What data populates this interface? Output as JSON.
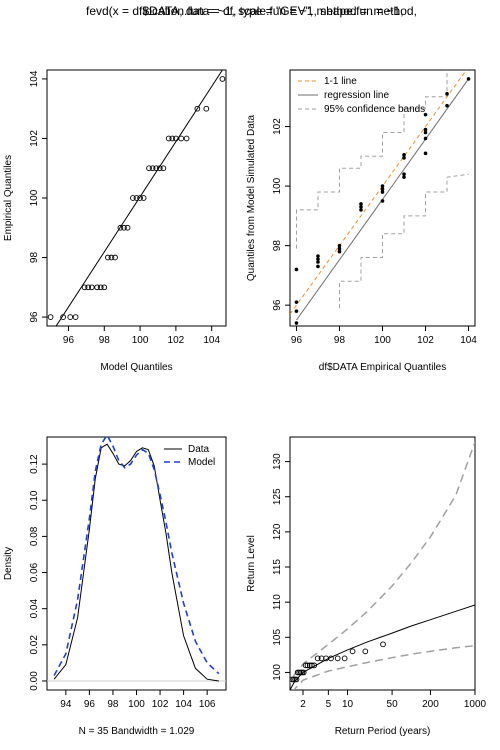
{
  "header": {
    "call_text_a": "fevd(x = df$DATA, data = df, type = \"GEV\", method = .method,",
    "call_text_b": "                 location.fun = ~1, scale.fun = ~1, shape.fun = ~1,"
  },
  "colors": {
    "line": "#000000",
    "orange": "#f28e2b",
    "gray": "#a0a0a0",
    "blue": "#1f3fd6"
  },
  "chart_data": [
    {
      "id": "qq-model",
      "type": "scatter",
      "xlabel": "Model Quantiles",
      "ylabel": "Empirical Quantiles",
      "xlim": [
        94.8,
        104.8
      ],
      "ylim": [
        95.7,
        104.3
      ],
      "x_ticks": [
        96,
        98,
        100,
        102,
        104
      ],
      "y_ticks": [
        96,
        98,
        100,
        102,
        104
      ],
      "points": [
        {
          "x": 95.0,
          "y": 96
        },
        {
          "x": 95.7,
          "y": 96
        },
        {
          "x": 96.1,
          "y": 96
        },
        {
          "x": 96.4,
          "y": 96
        },
        {
          "x": 96.9,
          "y": 97
        },
        {
          "x": 97.1,
          "y": 97
        },
        {
          "x": 97.3,
          "y": 97
        },
        {
          "x": 97.6,
          "y": 97
        },
        {
          "x": 97.8,
          "y": 97
        },
        {
          "x": 98.0,
          "y": 97
        },
        {
          "x": 98.2,
          "y": 98
        },
        {
          "x": 98.4,
          "y": 98
        },
        {
          "x": 98.6,
          "y": 98
        },
        {
          "x": 98.9,
          "y": 99
        },
        {
          "x": 99.1,
          "y": 99
        },
        {
          "x": 99.3,
          "y": 99
        },
        {
          "x": 99.6,
          "y": 100
        },
        {
          "x": 99.8,
          "y": 100
        },
        {
          "x": 100.0,
          "y": 100
        },
        {
          "x": 100.2,
          "y": 100
        },
        {
          "x": 100.5,
          "y": 101
        },
        {
          "x": 100.7,
          "y": 101
        },
        {
          "x": 100.9,
          "y": 101
        },
        {
          "x": 101.1,
          "y": 101
        },
        {
          "x": 101.3,
          "y": 101
        },
        {
          "x": 101.6,
          "y": 102
        },
        {
          "x": 101.8,
          "y": 102
        },
        {
          "x": 102.0,
          "y": 102
        },
        {
          "x": 102.3,
          "y": 102
        },
        {
          "x": 102.6,
          "y": 102
        },
        {
          "x": 103.2,
          "y": 103
        },
        {
          "x": 103.7,
          "y": 103
        },
        {
          "x": 104.6,
          "y": 104
        }
      ],
      "fit_line": [
        [
          95.2,
          95.6
        ],
        [
          104.6,
          104.3
        ]
      ]
    },
    {
      "id": "qq-simulated",
      "type": "scatter",
      "xlabel": "df$DATA Empirical Quantiles",
      "ylabel": "Quantiles from Model Simulated Data",
      "xlim": [
        95.7,
        104.3
      ],
      "ylim": [
        95.3,
        103.9
      ],
      "x_ticks": [
        96,
        98,
        100,
        102,
        104
      ],
      "y_ticks": [
        96,
        98,
        100,
        102
      ],
      "legend": {
        "position": "top-left",
        "entries": [
          "1-1 line",
          "regression line",
          "95% confidence bands"
        ]
      },
      "points": [
        {
          "x": 96,
          "y": 95.4
        },
        {
          "x": 96,
          "y": 95.8
        },
        {
          "x": 96,
          "y": 96.1
        },
        {
          "x": 96,
          "y": 97.2
        },
        {
          "x": 97,
          "y": 97.3
        },
        {
          "x": 97,
          "y": 97.45
        },
        {
          "x": 97,
          "y": 97.55
        },
        {
          "x": 97,
          "y": 97.65
        },
        {
          "x": 98,
          "y": 97.8
        },
        {
          "x": 98,
          "y": 97.9
        },
        {
          "x": 98,
          "y": 98.0
        },
        {
          "x": 99,
          "y": 99.2
        },
        {
          "x": 99,
          "y": 99.3
        },
        {
          "x": 99,
          "y": 99.4
        },
        {
          "x": 100,
          "y": 99.5
        },
        {
          "x": 100,
          "y": 99.8
        },
        {
          "x": 100,
          "y": 99.9
        },
        {
          "x": 100,
          "y": 100.0
        },
        {
          "x": 101,
          "y": 100.3
        },
        {
          "x": 101,
          "y": 100.4
        },
        {
          "x": 101,
          "y": 100.95
        },
        {
          "x": 101,
          "y": 101.05
        },
        {
          "x": 102,
          "y": 101.1
        },
        {
          "x": 102,
          "y": 101.6
        },
        {
          "x": 102,
          "y": 101.8
        },
        {
          "x": 102,
          "y": 101.9
        },
        {
          "x": 102,
          "y": 102.4
        },
        {
          "x": 103,
          "y": 102.7
        },
        {
          "x": 103,
          "y": 103.1
        },
        {
          "x": 104,
          "y": 103.6
        }
      ],
      "one_to_one": [
        [
          95.7,
          95.7
        ],
        [
          104.3,
          104.3
        ]
      ],
      "regression": [
        [
          96,
          95.5
        ],
        [
          104,
          103.6
        ]
      ],
      "band_upper": [
        [
          96,
          97.9
        ],
        [
          96,
          99.2
        ],
        [
          97,
          99.2
        ],
        [
          97,
          99.8
        ],
        [
          98,
          99.8
        ],
        [
          98,
          100.6
        ],
        [
          99,
          100.6
        ],
        [
          99,
          101.0
        ],
        [
          100,
          101.0
        ],
        [
          100,
          101.8
        ],
        [
          101,
          101.8
        ],
        [
          101,
          102.6
        ],
        [
          102,
          102.6
        ],
        [
          102,
          103.0
        ],
        [
          103,
          103.0
        ],
        [
          103,
          103.9
        ]
      ],
      "band_lower": [
        [
          98,
          95.9
        ],
        [
          98,
          96.8
        ],
        [
          99,
          96.8
        ],
        [
          99,
          97.6
        ],
        [
          100,
          97.6
        ],
        [
          100,
          98.4
        ],
        [
          101,
          98.4
        ],
        [
          101,
          99.0
        ],
        [
          102,
          99.0
        ],
        [
          102,
          99.8
        ],
        [
          103,
          99.8
        ],
        [
          103,
          100.3
        ],
        [
          104,
          100.4
        ]
      ]
    },
    {
      "id": "density",
      "type": "line",
      "xlabel": "N = 35   Bandwidth = 1.029",
      "ylabel": "Density",
      "xlim": [
        92.4,
        107.6
      ],
      "ylim": [
        -0.005,
        0.135
      ],
      "x_ticks": [
        94,
        96,
        98,
        100,
        102,
        104,
        106
      ],
      "y_ticks": [
        0.0,
        0.02,
        0.04,
        0.06,
        0.08,
        0.1,
        0.12
      ],
      "y_tick_labels": [
        "0.00",
        "0.02",
        "0.04",
        "0.06",
        "0.08",
        "0.10",
        "0.12"
      ],
      "legend": {
        "position": "top-right"
      },
      "series": [
        {
          "name": "Data",
          "dash": false,
          "x": [
            93,
            94,
            95,
            96,
            96.5,
            97,
            97.5,
            98,
            98.5,
            99,
            99.5,
            100,
            100.5,
            101,
            101.5,
            102,
            102.5,
            103,
            104,
            105,
            106,
            107
          ],
          "y": [
            0.001,
            0.009,
            0.035,
            0.084,
            0.112,
            0.129,
            0.131,
            0.126,
            0.12,
            0.119,
            0.122,
            0.127,
            0.129,
            0.128,
            0.119,
            0.1,
            0.082,
            0.06,
            0.025,
            0.007,
            0.001,
            0.0
          ]
        },
        {
          "name": "Model",
          "dash": true,
          "x": [
            93,
            94,
            95,
            96,
            96.5,
            97,
            97.5,
            98,
            98.5,
            99,
            99.5,
            100,
            100.5,
            101,
            101.5,
            102,
            102.5,
            103,
            104,
            105,
            106,
            107
          ],
          "y": [
            0.003,
            0.015,
            0.045,
            0.09,
            0.116,
            0.131,
            0.136,
            0.13,
            0.122,
            0.118,
            0.12,
            0.125,
            0.128,
            0.126,
            0.117,
            0.103,
            0.088,
            0.071,
            0.043,
            0.022,
            0.01,
            0.004
          ]
        }
      ]
    },
    {
      "id": "return-level",
      "type": "line",
      "xlabel": "Return Period (years)",
      "ylabel": "Return Level",
      "x_scale": "log",
      "xlim": [
        1.25,
        1000
      ],
      "ylim": [
        97.5,
        133.5
      ],
      "x_ticks": [
        2,
        5,
        10,
        50,
        200,
        1000
      ],
      "y_ticks": [
        100,
        105,
        110,
        115,
        120,
        125,
        130
      ],
      "estimate": [
        [
          1.1,
          96.6
        ],
        [
          1.5,
          98.8
        ],
        [
          2,
          100.0
        ],
        [
          5,
          102.0
        ],
        [
          10,
          103.2
        ],
        [
          20,
          104.3
        ],
        [
          50,
          105.6
        ],
        [
          100,
          106.6
        ],
        [
          200,
          107.5
        ],
        [
          500,
          108.7
        ],
        [
          1000,
          109.6
        ]
      ],
      "ci_upper": [
        [
          1.1,
          97.8
        ],
        [
          1.5,
          99.8
        ],
        [
          2,
          101.2
        ],
        [
          5,
          104.0
        ],
        [
          10,
          106.2
        ],
        [
          20,
          108.6
        ],
        [
          50,
          112.3
        ],
        [
          100,
          115.6
        ],
        [
          200,
          119.3
        ],
        [
          500,
          125.2
        ],
        [
          1000,
          132.8
        ]
      ],
      "ci_lower": [
        [
          1.1,
          95.5
        ],
        [
          1.5,
          97.7
        ],
        [
          2,
          98.9
        ],
        [
          5,
          100.2
        ],
        [
          10,
          100.8
        ],
        [
          20,
          101.4
        ],
        [
          50,
          102.1
        ],
        [
          100,
          102.6
        ],
        [
          200,
          103.0
        ],
        [
          500,
          103.5
        ],
        [
          1000,
          103.8
        ]
      ],
      "points": [
        {
          "x": 1.35,
          "y": 99
        },
        {
          "x": 1.42,
          "y": 99
        },
        {
          "x": 1.5,
          "y": 99
        },
        {
          "x": 1.58,
          "y": 99
        },
        {
          "x": 1.65,
          "y": 100
        },
        {
          "x": 1.75,
          "y": 100
        },
        {
          "x": 1.85,
          "y": 100
        },
        {
          "x": 1.95,
          "y": 100
        },
        {
          "x": 2.05,
          "y": 100
        },
        {
          "x": 2.2,
          "y": 101
        },
        {
          "x": 2.35,
          "y": 101
        },
        {
          "x": 2.55,
          "y": 101
        },
        {
          "x": 2.75,
          "y": 101
        },
        {
          "x": 3.0,
          "y": 101
        },
        {
          "x": 3.4,
          "y": 102
        },
        {
          "x": 3.9,
          "y": 102
        },
        {
          "x": 4.6,
          "y": 102
        },
        {
          "x": 5.5,
          "y": 102
        },
        {
          "x": 7,
          "y": 102
        },
        {
          "x": 9,
          "y": 102
        },
        {
          "x": 12,
          "y": 103
        },
        {
          "x": 19,
          "y": 103
        },
        {
          "x": 36,
          "y": 104
        }
      ]
    }
  ]
}
